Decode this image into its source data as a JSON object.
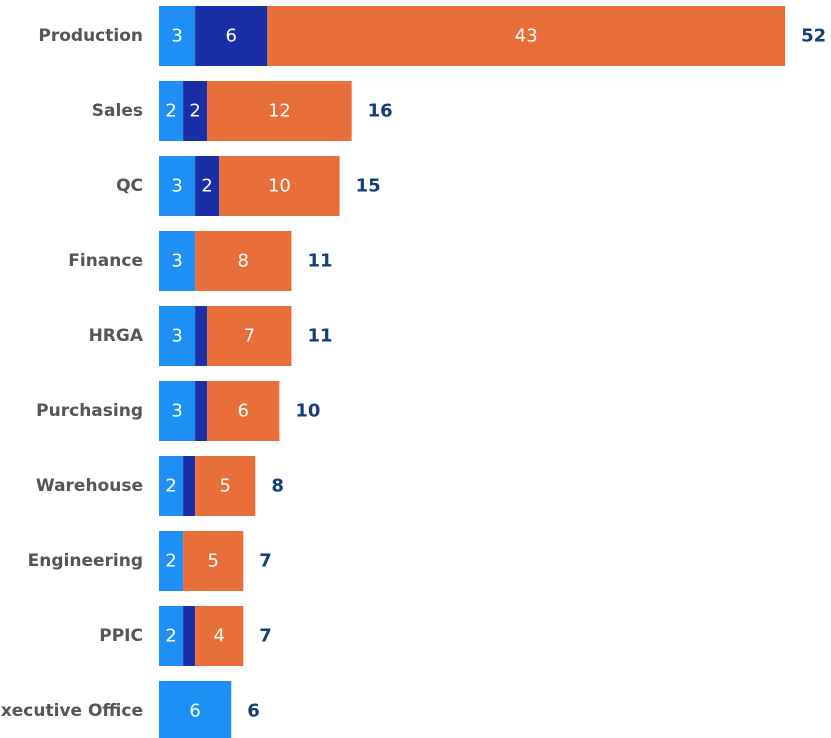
{
  "chart_data": {
    "type": "stacked-bar-horizontal",
    "categories": [
      "Production",
      "Sales",
      "QC",
      "Finance",
      "HRGA",
      "Purchasing",
      "Warehouse",
      "Engineering",
      "PPIC",
      "Executive Office"
    ],
    "series": [
      {
        "color": "#1e90f5",
        "values": [
          3,
          2,
          3,
          3,
          3,
          3,
          2,
          2,
          2,
          6
        ]
      },
      {
        "color": "#1a2ea6",
        "values": [
          6,
          2,
          2,
          null,
          1,
          1,
          1,
          null,
          1,
          null
        ]
      },
      {
        "color": "#e86f3a",
        "values": [
          43,
          12,
          10,
          8,
          7,
          6,
          5,
          5,
          4,
          null
        ]
      }
    ],
    "totals": [
      52,
      16,
      15,
      11,
      11,
      10,
      8,
      7,
      7,
      6
    ],
    "totals_color": "#153e75"
  }
}
